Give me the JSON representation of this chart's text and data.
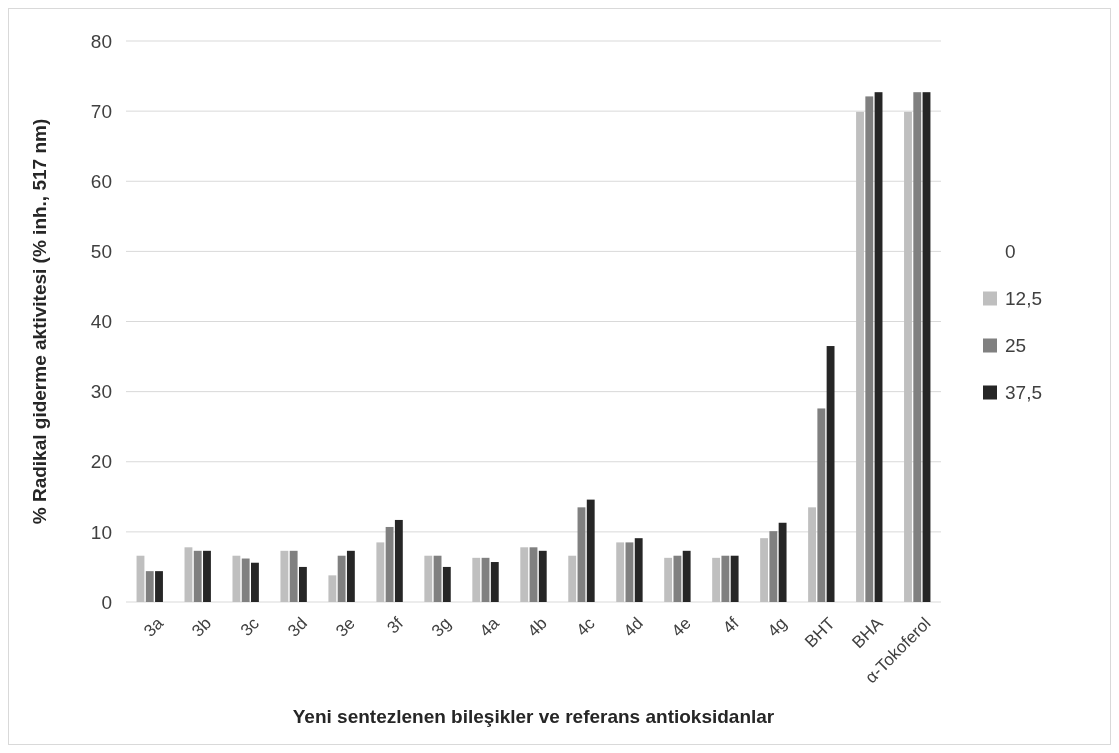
{
  "chart_data": {
    "type": "bar",
    "xlabel": "Yeni sentezlenen bileşikler ve referans antioksidanlar",
    "ylabel": "% Radikal giderme aktivitesi (% inh., 517 nm)",
    "legend_title": "0",
    "legend": "right",
    "categories": [
      "3a",
      "3b",
      "3c",
      "3d",
      "3e",
      "3f",
      "3g",
      "4a",
      "4b",
      "4c",
      "4d",
      "4e",
      "4f",
      "4g",
      "BHT",
      "BHA",
      "α-Tokoferol"
    ],
    "series": [
      {
        "name": "12,5",
        "color": "#bfbfbf",
        "values": [
          6.6,
          7.8,
          6.6,
          7.3,
          3.8,
          8.5,
          6.6,
          6.3,
          7.8,
          6.6,
          8.5,
          6.3,
          6.3,
          9.1,
          13.5,
          69.9,
          69.9
        ]
      },
      {
        "name": "25",
        "color": "#808080",
        "values": [
          4.4,
          7.3,
          6.2,
          7.3,
          6.6,
          10.7,
          6.6,
          6.3,
          7.8,
          13.5,
          8.5,
          6.6,
          6.6,
          10.1,
          27.6,
          72.1,
          72.7
        ]
      },
      {
        "name": "37,5",
        "color": "#262626",
        "values": [
          4.4,
          7.3,
          5.6,
          5.0,
          7.3,
          11.7,
          5.0,
          5.7,
          7.3,
          14.6,
          9.1,
          7.3,
          6.6,
          11.3,
          36.5,
          72.7,
          72.7
        ]
      }
    ],
    "ylim": [
      0,
      80
    ],
    "yticks": [
      0,
      10,
      20,
      30,
      40,
      50,
      60,
      70,
      80
    ],
    "grid": "y"
  }
}
